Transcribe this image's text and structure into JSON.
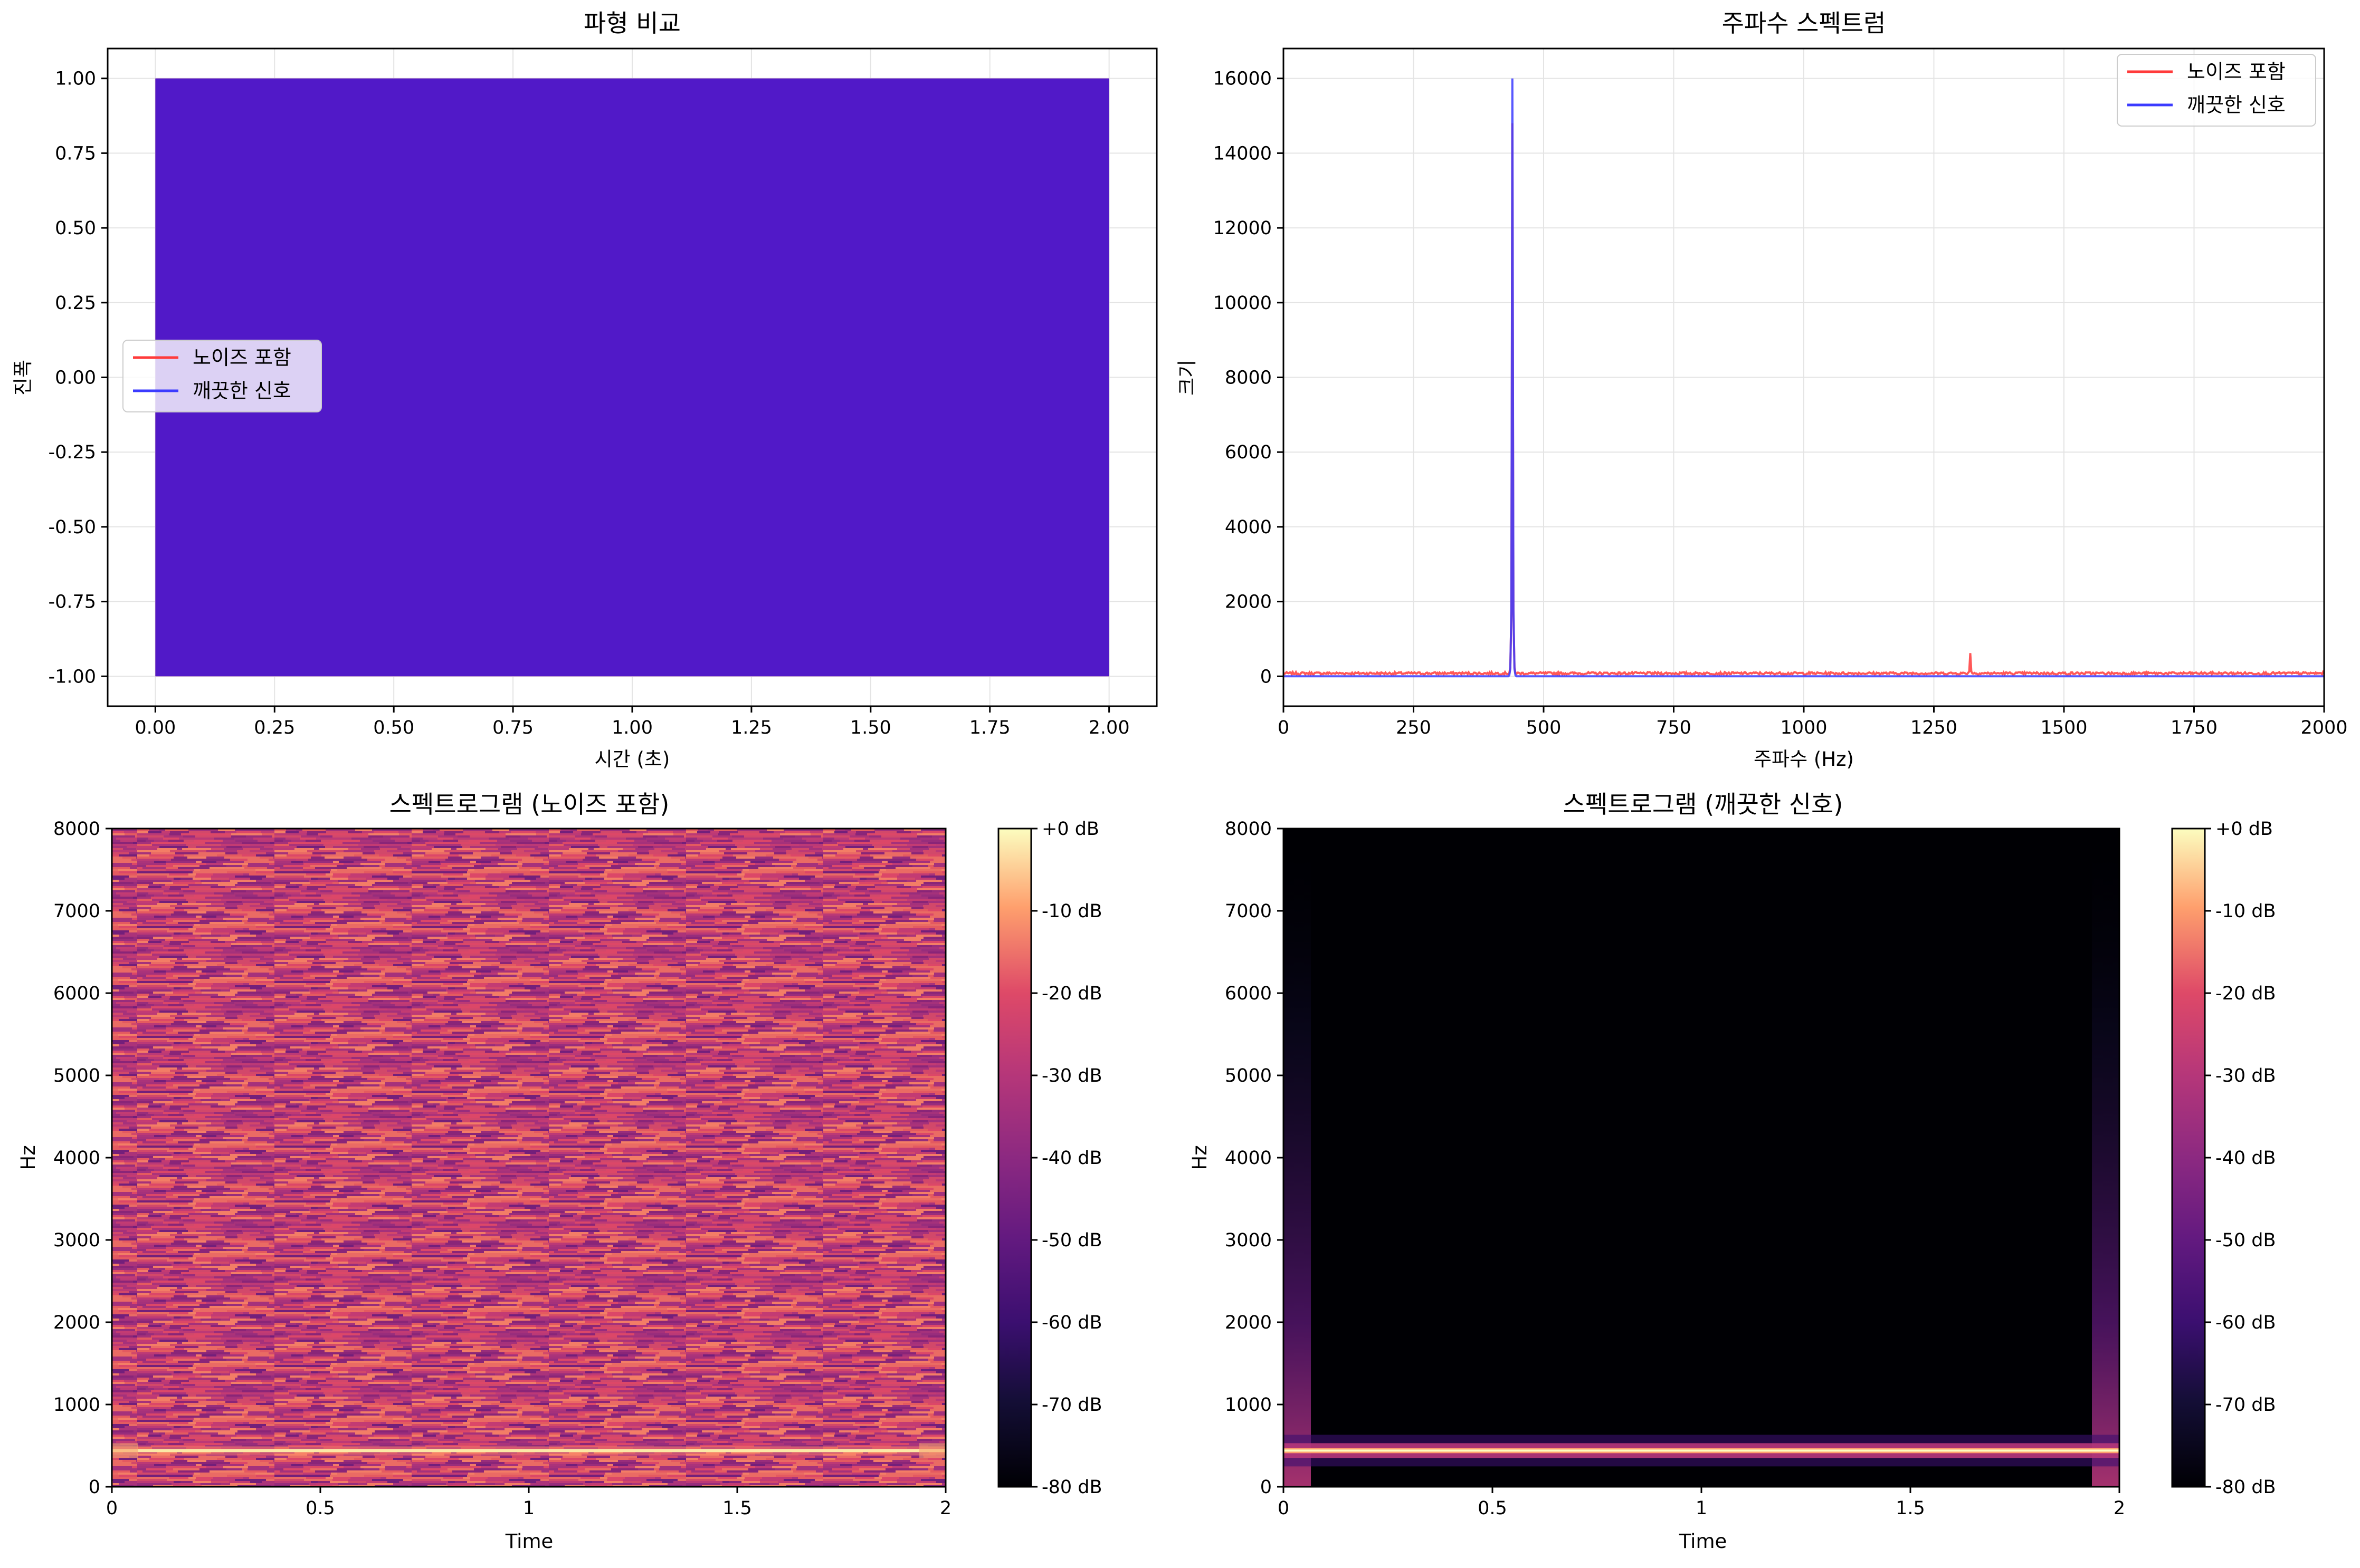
{
  "colors": {
    "noisy": "#ff3b3b",
    "clean": "#3b3bff",
    "waveform_fill": "#4b17cb",
    "grid": "#e4e4e4",
    "spec_dark": "#000004"
  },
  "colormap_name": "magma",
  "chart_data": [
    {
      "id": "waveform",
      "type": "line",
      "title": "파형 비교",
      "xlabel": "시간 (초)",
      "ylabel": "진폭",
      "xlim": [
        -0.1,
        2.1
      ],
      "ylim": [
        -1.1,
        1.1
      ],
      "xticks": [
        "0.00",
        "0.25",
        "0.50",
        "0.75",
        "1.00",
        "1.25",
        "1.50",
        "1.75",
        "2.00"
      ],
      "xtick_values": [
        0,
        0.25,
        0.5,
        0.75,
        1.0,
        1.25,
        1.5,
        1.75,
        2.0
      ],
      "yticks": [
        "1.00",
        "0.75",
        "0.50",
        "0.25",
        "0.00",
        "-0.25",
        "-0.50",
        "-0.75",
        "-1.00"
      ],
      "ytick_values": [
        1.0,
        0.75,
        0.5,
        0.25,
        0.0,
        -0.25,
        -0.5,
        -0.75,
        -1.0
      ],
      "grid": true,
      "legend_position": "center-left",
      "signal_frequency_hz": 440,
      "signal_span": [
        0,
        2.0
      ],
      "amplitude_range": [
        -1.0,
        1.0
      ],
      "series": [
        {
          "name": "노이즈 포함",
          "color_key": "noisy"
        },
        {
          "name": "깨끗한 신호",
          "color_key": "clean"
        }
      ]
    },
    {
      "id": "spectrum",
      "type": "line",
      "title": "주파수 스펙트럼",
      "xlabel": "주파수 (Hz)",
      "ylabel": "크기",
      "xlim": [
        0,
        2000
      ],
      "ylim": [
        -800,
        16800
      ],
      "xticks": [
        "0",
        "250",
        "500",
        "750",
        "1000",
        "1250",
        "1500",
        "1750",
        "2000"
      ],
      "xtick_values": [
        0,
        250,
        500,
        750,
        1000,
        1250,
        1500,
        1750,
        2000
      ],
      "yticks": [
        "16000",
        "14000",
        "12000",
        "10000",
        "8000",
        "6000",
        "4000",
        "2000",
        "0"
      ],
      "ytick_values": [
        16000,
        14000,
        12000,
        10000,
        8000,
        6000,
        4000,
        2000,
        0
      ],
      "grid": true,
      "legend_position": "top-right",
      "series": [
        {
          "name": "노이즈 포함",
          "color_key": "noisy",
          "peaks": [
            {
              "x": 440,
              "y": 14800
            },
            {
              "x": 1320,
              "y": 620
            }
          ],
          "noise_floor": 80
        },
        {
          "name": "깨끗한 신호",
          "color_key": "clean",
          "peaks": [
            {
              "x": 440,
              "y": 16000
            }
          ],
          "noise_floor": 0
        }
      ]
    },
    {
      "id": "spec-noisy",
      "type": "heatmap",
      "title": "스펙트로그램 (노이즈 포함)",
      "xlabel": "Time",
      "ylabel": "Hz",
      "xlim": [
        0,
        2
      ],
      "ylim": [
        0,
        8000
      ],
      "xticks": [
        "0",
        "0.5",
        "1",
        "1.5",
        "2"
      ],
      "xtick_values": [
        0,
        0.5,
        1,
        1.5,
        2
      ],
      "yticks": [
        "8000",
        "7000",
        "6000",
        "5000",
        "4000",
        "3000",
        "2000",
        "1000",
        "0"
      ],
      "ytick_values": [
        8000,
        7000,
        6000,
        5000,
        4000,
        3000,
        2000,
        1000,
        0
      ],
      "tone_hz": 440,
      "background_level_db": -32,
      "colorbar_ticks": [
        "+0 dB",
        "-10 dB",
        "-20 dB",
        "-30 dB",
        "-40 dB",
        "-50 dB",
        "-60 dB",
        "-70 dB",
        "-80 dB"
      ],
      "colorbar_range_db": [
        -80,
        0
      ]
    },
    {
      "id": "spec-clean",
      "type": "heatmap",
      "title": "스펙트로그램 (깨끗한 신호)",
      "xlabel": "Time",
      "ylabel": "Hz",
      "xlim": [
        0,
        2
      ],
      "ylim": [
        0,
        8000
      ],
      "xticks": [
        "0",
        "0.5",
        "1",
        "1.5",
        "2"
      ],
      "xtick_values": [
        0,
        0.5,
        1,
        1.5,
        2
      ],
      "yticks": [
        "8000",
        "7000",
        "6000",
        "5000",
        "4000",
        "3000",
        "2000",
        "1000",
        "0"
      ],
      "ytick_values": [
        8000,
        7000,
        6000,
        5000,
        4000,
        3000,
        2000,
        1000,
        0
      ],
      "tone_hz": 440,
      "background_level_db": -80,
      "colorbar_ticks": [
        "+0 dB",
        "-10 dB",
        "-20 dB",
        "-30 dB",
        "-40 dB",
        "-50 dB",
        "-60 dB",
        "-70 dB",
        "-80 dB"
      ],
      "colorbar_range_db": [
        -80,
        0
      ]
    }
  ]
}
